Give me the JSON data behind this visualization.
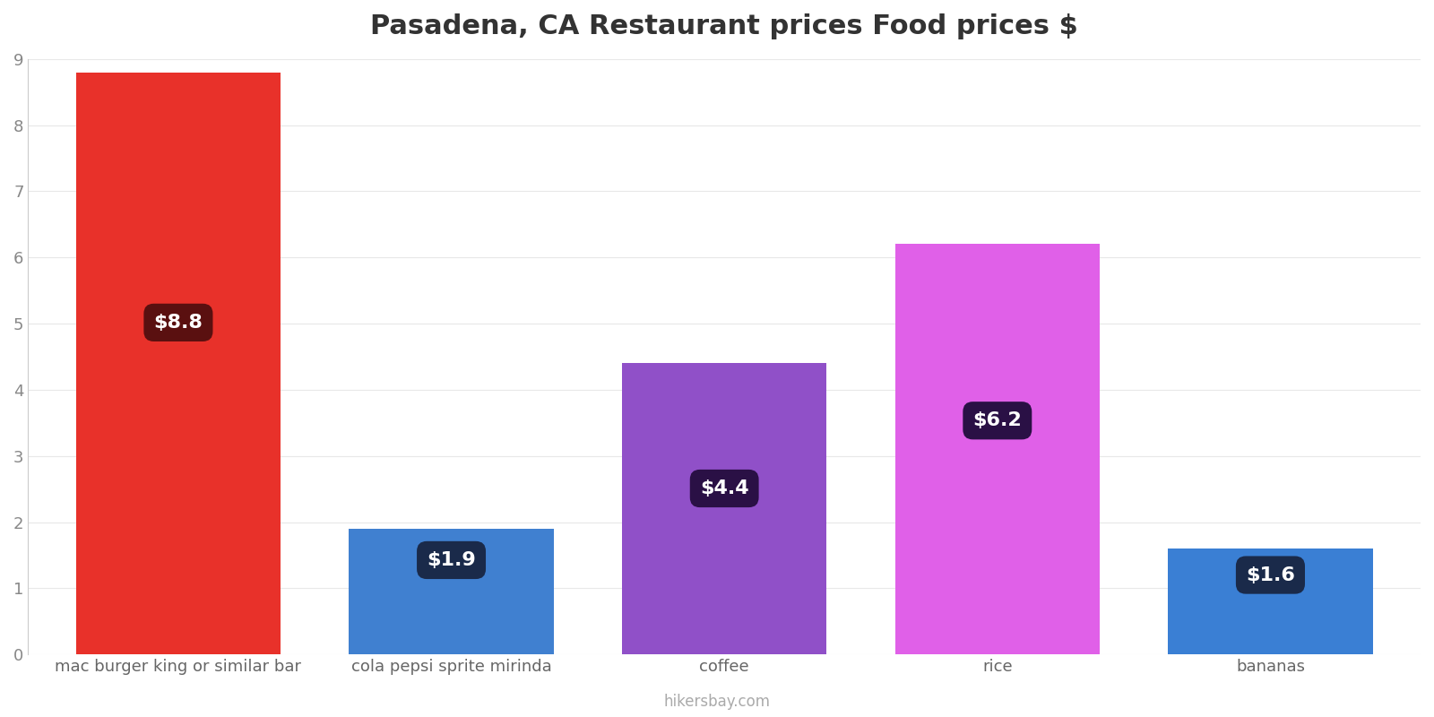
{
  "title": "Pasadena, CA Restaurant prices Food prices $",
  "categories": [
    "mac burger king or similar bar",
    "cola pepsi sprite mirinda",
    "coffee",
    "rice",
    "bananas"
  ],
  "values": [
    8.8,
    1.9,
    4.4,
    6.2,
    1.6
  ],
  "bar_colors": [
    "#e8312a",
    "#4080d0",
    "#9050c8",
    "#e060e8",
    "#3a7fd4"
  ],
  "label_texts": [
    "$8.8",
    "$1.9",
    "$4.4",
    "$6.2",
    "$1.6"
  ],
  "label_bg_colors": [
    "#5a1010",
    "#1a2a4a",
    "#2a1045",
    "#2a1045",
    "#1a2a4a"
  ],
  "ylim": [
    0,
    9
  ],
  "yticks": [
    0,
    1,
    2,
    3,
    4,
    5,
    6,
    7,
    8,
    9
  ],
  "title_fontsize": 22,
  "tick_fontsize": 13,
  "label_fontsize": 16,
  "watermark": "hikersbay.com",
  "background_color": "#ffffff",
  "grid_color": "#e8e8e8"
}
